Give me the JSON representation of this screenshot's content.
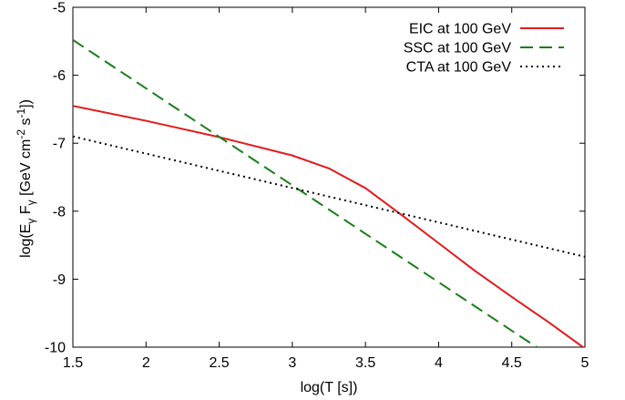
{
  "chart_data": {
    "type": "line",
    "xlabel": "log(T [s])",
    "ylabel": {
      "prefix": "log(E",
      "sub1": "γ",
      "mid": " F",
      "sub2": "γ",
      "unit_a": " [GeV cm",
      "sup1": "-2",
      "unit_b": " s",
      "sup2": "-1",
      "suffix": "])"
    },
    "xlim": [
      1.5,
      5
    ],
    "ylim": [
      -10,
      -5
    ],
    "xticks": [
      1.5,
      2,
      2.5,
      3,
      3.5,
      4,
      4.5,
      5
    ],
    "xtick_labels": [
      "1.5",
      "2",
      "2.5",
      "3",
      "3.5",
      "4",
      "4.5",
      "5"
    ],
    "yticks": [
      -10,
      -9,
      -8,
      -7,
      -6,
      -5
    ],
    "ytick_labels": [
      "-10",
      "-9",
      "-8",
      "-7",
      "-6",
      "-5"
    ],
    "grid": false,
    "legend_position": "top-right",
    "series": [
      {
        "name": "EIC at 100 GeV",
        "color": "#e41a1c",
        "style": "solid",
        "x": [
          1.5,
          2.0,
          2.5,
          3.0,
          3.25,
          3.5,
          3.75,
          4.0,
          4.25,
          4.5,
          4.75,
          5.0
        ],
        "y": [
          -6.45,
          -6.67,
          -6.91,
          -7.18,
          -7.37,
          -7.66,
          -8.06,
          -8.47,
          -8.88,
          -9.26,
          -9.63,
          -10.02
        ]
      },
      {
        "name": "SSC at 100 GeV",
        "color": "#1a7f1a",
        "style": "dashed",
        "x": [
          1.5,
          4.67
        ],
        "y": [
          -5.48,
          -10.0
        ]
      },
      {
        "name": "CTA at 100 GeV",
        "color": "#000000",
        "style": "dotted",
        "x": [
          1.5,
          5.0
        ],
        "y": [
          -6.9,
          -8.67
        ]
      }
    ]
  }
}
